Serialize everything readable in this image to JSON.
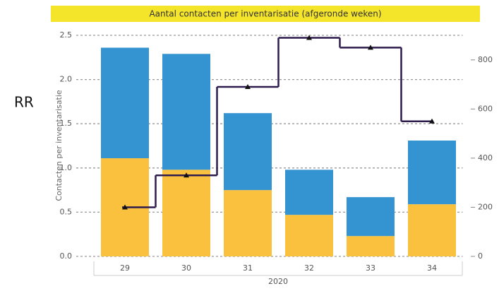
{
  "chart_data": {
    "type": "bar-step",
    "title": "Aantal contacten per inventarisatie (afgeronde weken)",
    "side_label": "RR",
    "y_label": "Contacten per inventarisatie",
    "group_label": "2020",
    "categories": [
      "29",
      "30",
      "31",
      "32",
      "33",
      "34"
    ],
    "series": [
      {
        "type": "bar",
        "color": "#f9c13d",
        "values": [
          1.11,
          0.98,
          0.75,
          0.47,
          0.23,
          0.59
        ]
      },
      {
        "type": "bar",
        "color": "#3493d1",
        "values": [
          1.25,
          1.31,
          0.87,
          0.51,
          0.44,
          0.72
        ]
      },
      {
        "type": "step",
        "color": "#2d1b4e",
        "axis": "y2",
        "values": [
          200,
          330,
          690,
          890,
          850,
          550
        ]
      }
    ],
    "ylim": [
      0,
      2.5
    ],
    "yticks": [
      {
        "value": 0,
        "label": "0.0"
      },
      0.5,
      {
        "value": 1,
        "label": "1.0"
      },
      1.5,
      {
        "value": 2,
        "label": "2.0"
      },
      2.5
    ],
    "y2lim": [
      0,
      900
    ],
    "y2ticks": [
      0,
      200,
      400,
      600,
      800
    ],
    "grid": true,
    "title_color": "#f5e52a"
  }
}
